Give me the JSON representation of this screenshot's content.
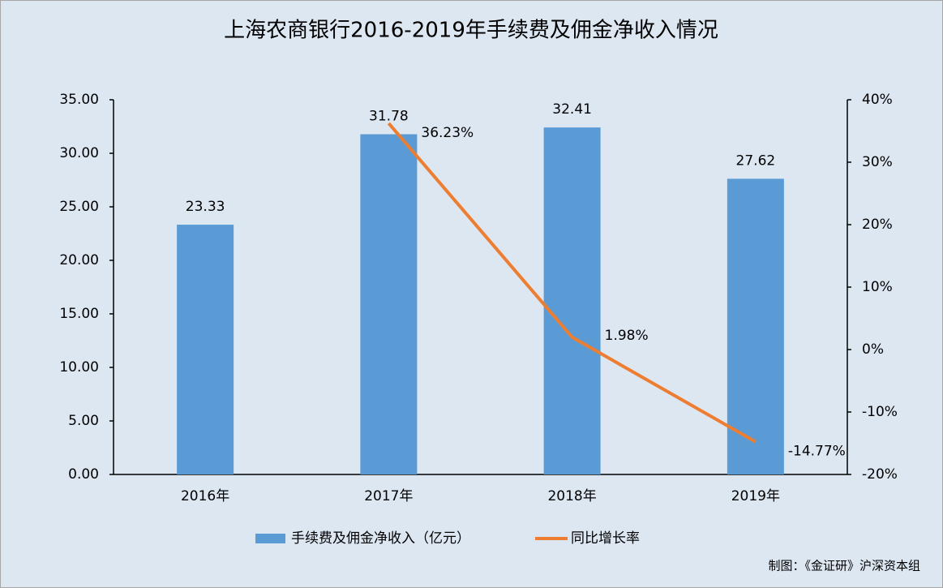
{
  "chart_data": {
    "type": "bar_line",
    "title": "上海农商银行2016-2019年手续费及佣金净收入情况",
    "categories": [
      "2016年",
      "2017年",
      "2018年",
      "2019年"
    ],
    "series": [
      {
        "name": "手续费及佣金净收入（亿元）",
        "type": "bar",
        "color": "#5b9bd5",
        "values": [
          23.33,
          31.78,
          32.41,
          27.62
        ]
      },
      {
        "name": "同比增长率",
        "type": "line",
        "axis": "y2",
        "color": "#ed7d31",
        "values": [
          null,
          36.23,
          1.98,
          -14.77
        ],
        "value_labels": [
          null,
          "36.23%",
          "1.98%",
          "-14.77%"
        ]
      }
    ],
    "ylim": [
      0,
      35
    ],
    "yticks": [
      {
        "value": 0,
        "label": "0.00"
      },
      {
        "value": 5,
        "label": "5.00"
      },
      {
        "value": 10,
        "label": "10.00"
      },
      {
        "value": 15,
        "label": "15.00"
      },
      {
        "value": 20,
        "label": "20.00"
      },
      {
        "value": 25,
        "label": "25.00"
      },
      {
        "value": 30,
        "label": "30.00"
      },
      {
        "value": 35,
        "label": "35.00"
      }
    ],
    "y2lim": [
      -20,
      40
    ],
    "y2ticks": [
      {
        "value": -20,
        "label": "-20%"
      },
      {
        "value": -10,
        "label": "-10%"
      },
      {
        "value": 0,
        "label": "0%"
      },
      {
        "value": 10,
        "label": "10%"
      },
      {
        "value": 20,
        "label": "20%"
      },
      {
        "value": 30,
        "label": "30%"
      },
      {
        "value": 40,
        "label": "40%"
      }
    ],
    "grid": false,
    "legend": "bottom",
    "source": "制图：《金证研》沪深资本组"
  }
}
